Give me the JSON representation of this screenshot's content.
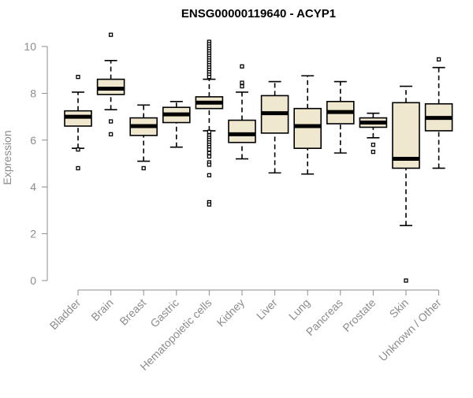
{
  "chart_data": {
    "type": "box",
    "title": "ENSG00000119640 - ACYP1",
    "xlabel": "",
    "ylabel": "Expression",
    "ylim": [
      0,
      10.5
    ],
    "yticks": [
      0,
      2,
      4,
      6,
      8,
      10
    ],
    "grid": false,
    "legend": "none",
    "colors": {
      "box_fill": "#efe8cf",
      "box_stroke": "#000000",
      "axis": "#8c8c8c",
      "title": "#000000"
    },
    "categories": [
      "Bladder",
      "Brain",
      "Breast",
      "Gastric",
      "Hematopoietic cells",
      "Kidney",
      "Liver",
      "Lung",
      "Pancreas",
      "Prostate",
      "Skin",
      "Unknown / Other"
    ],
    "boxes": [
      {
        "category": "Bladder",
        "min": 5.65,
        "q1": 6.6,
        "median": 7.0,
        "q3": 7.25,
        "max": 8.05,
        "outliers": [
          8.7,
          5.6,
          4.8
        ]
      },
      {
        "category": "Brain",
        "min": 7.3,
        "q1": 7.95,
        "median": 8.2,
        "q3": 8.6,
        "max": 9.4,
        "outliers": [
          10.5,
          6.8,
          6.25
        ]
      },
      {
        "category": "Breast",
        "min": 5.1,
        "q1": 6.2,
        "median": 6.6,
        "q3": 6.95,
        "max": 7.5,
        "outliers": [
          4.8
        ]
      },
      {
        "category": "Gastric",
        "min": 5.7,
        "q1": 6.75,
        "median": 7.1,
        "q3": 7.4,
        "max": 7.65,
        "outliers": []
      },
      {
        "category": "Hematopoietic cells",
        "min": 6.4,
        "q1": 7.35,
        "median": 7.6,
        "q3": 7.85,
        "max": 8.6,
        "outliers": [
          10.2,
          10.1,
          10.0,
          9.9,
          9.8,
          9.7,
          9.6,
          9.5,
          9.4,
          9.3,
          9.2,
          9.1,
          9.0,
          8.9,
          8.8,
          8.7,
          6.35,
          6.2,
          6.1,
          6.0,
          5.9,
          5.8,
          5.7,
          5.6,
          5.45,
          5.3,
          5.05,
          4.95,
          4.5,
          3.35,
          3.25
        ]
      },
      {
        "category": "Kidney",
        "min": 5.2,
        "q1": 5.9,
        "median": 6.25,
        "q3": 6.85,
        "max": 8.05,
        "outliers": [
          9.15,
          8.45,
          8.3
        ]
      },
      {
        "category": "Liver",
        "min": 4.6,
        "q1": 6.3,
        "median": 7.15,
        "q3": 7.9,
        "max": 8.5,
        "outliers": []
      },
      {
        "category": "Lung",
        "min": 4.55,
        "q1": 5.65,
        "median": 6.6,
        "q3": 7.35,
        "max": 8.75,
        "outliers": []
      },
      {
        "category": "Pancreas",
        "min": 5.45,
        "q1": 6.7,
        "median": 7.2,
        "q3": 7.65,
        "max": 8.5,
        "outliers": []
      },
      {
        "category": "Prostate",
        "min": 6.1,
        "q1": 6.55,
        "median": 6.75,
        "q3": 6.95,
        "max": 7.15,
        "outliers": [
          5.8,
          5.5
        ]
      },
      {
        "category": "Skin",
        "min": 2.35,
        "q1": 4.8,
        "median": 5.2,
        "q3": 7.6,
        "max": 8.3,
        "outliers": [
          0.0
        ]
      },
      {
        "category": "Unknown / Other",
        "min": 4.8,
        "q1": 6.4,
        "median": 6.95,
        "q3": 7.55,
        "max": 9.1,
        "outliers": [
          9.45
        ]
      }
    ]
  }
}
